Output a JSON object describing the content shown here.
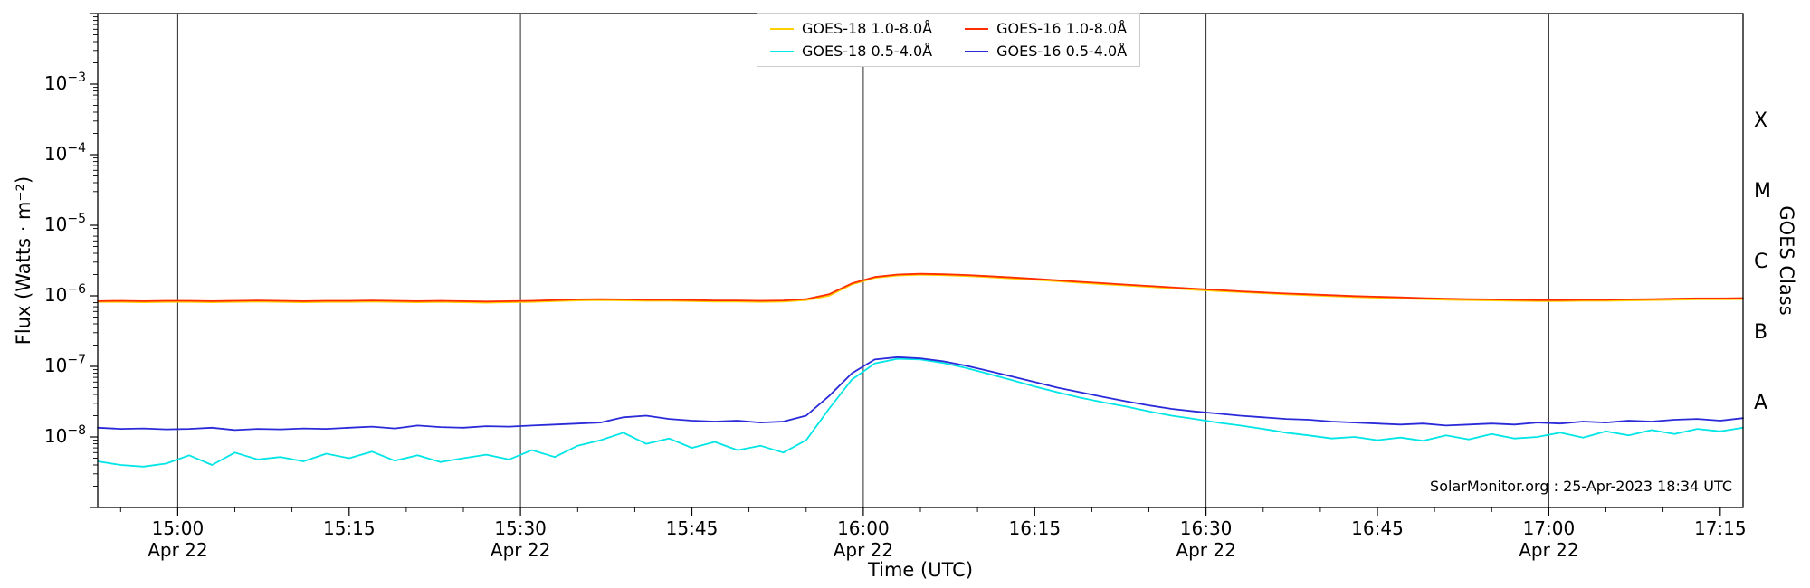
{
  "watermark": "SolarMonitor.org : 25-Apr-2023 18:34 UTC",
  "chart_data": {
    "type": "line",
    "title": "",
    "xlabel": "Time (UTC)",
    "ylabel": "Flux (Watts · m⁻²)",
    "ylabel_right": "GOES Class",
    "y_scale": "log",
    "y_range": [
      1e-09,
      0.01
    ],
    "y_tick_exponents": [
      -3,
      -4,
      -5,
      -6,
      -7,
      -8
    ],
    "x_unit": "minutes after 00:00 UTC",
    "x_range": [
      893,
      1037
    ],
    "x_minor_step_min": 5,
    "grid": "vertical lines at 30-min marks",
    "legend_position": "top-center",
    "x_ticks": [
      {
        "t": 900,
        "label": "15:00",
        "date": "Apr 22",
        "grid": true
      },
      {
        "t": 915,
        "label": "15:15",
        "grid": false
      },
      {
        "t": 930,
        "label": "15:30",
        "date": "Apr 22",
        "grid": true
      },
      {
        "t": 945,
        "label": "15:45",
        "grid": false
      },
      {
        "t": 960,
        "label": "16:00",
        "date": "Apr 22",
        "grid": true
      },
      {
        "t": 975,
        "label": "16:15",
        "grid": false
      },
      {
        "t": 990,
        "label": "16:30",
        "date": "Apr 22",
        "grid": true
      },
      {
        "t": 1005,
        "label": "16:45",
        "grid": false
      },
      {
        "t": 1020,
        "label": "17:00",
        "date": "Apr 22",
        "grid": true
      },
      {
        "t": 1035,
        "label": "17:15",
        "grid": false
      }
    ],
    "goes_classes": [
      {
        "label": "X",
        "mid_exp": -3.5
      },
      {
        "label": "M",
        "mid_exp": -4.5
      },
      {
        "label": "C",
        "mid_exp": -5.5
      },
      {
        "label": "B",
        "mid_exp": -6.5
      },
      {
        "label": "A",
        "mid_exp": -7.5
      }
    ],
    "x": [
      893,
      895,
      897,
      899,
      901,
      903,
      905,
      907,
      909,
      911,
      913,
      915,
      917,
      919,
      921,
      923,
      925,
      927,
      929,
      931,
      933,
      935,
      937,
      939,
      941,
      943,
      945,
      947,
      949,
      951,
      953,
      955,
      957,
      959,
      961,
      963,
      965,
      967,
      969,
      971,
      973,
      975,
      977,
      979,
      981,
      983,
      985,
      987,
      989,
      991,
      993,
      995,
      997,
      999,
      1001,
      1003,
      1005,
      1007,
      1009,
      1011,
      1013,
      1015,
      1017,
      1019,
      1021,
      1023,
      1025,
      1027,
      1029,
      1031,
      1033,
      1035,
      1037
    ],
    "series": [
      {
        "name": "GOES-18 1.0-8.0Å",
        "color": "#ffd000",
        "values": [
          8.2e-07,
          8.2e-07,
          8.1e-07,
          8.2e-07,
          8.2e-07,
          8.1e-07,
          8.2e-07,
          8.3e-07,
          8.2e-07,
          8.1e-07,
          8.2e-07,
          8.2e-07,
          8.3e-07,
          8.2e-07,
          8.1e-07,
          8.2e-07,
          8.1e-07,
          8e-07,
          8.1e-07,
          8.2e-07,
          8.4e-07,
          8.6e-07,
          8.7e-07,
          8.6e-07,
          8.5e-07,
          8.5e-07,
          8.4e-07,
          8.3e-07,
          8.3e-07,
          8.2e-07,
          8.3e-07,
          8.7e-07,
          1e-06,
          1.45e-06,
          1.8e-06,
          1.94e-06,
          1.99e-06,
          1.96e-06,
          1.91e-06,
          1.84e-06,
          1.76e-06,
          1.69e-06,
          1.61e-06,
          1.53e-06,
          1.46e-06,
          1.4e-06,
          1.34e-06,
          1.28e-06,
          1.22e-06,
          1.17e-06,
          1.13e-06,
          1.09e-06,
          1.05e-06,
          1.02e-06,
          9.9e-07,
          9.6e-07,
          9.4e-07,
          9.2e-07,
          9e-07,
          8.8e-07,
          8.7e-07,
          8.6e-07,
          8.5e-07,
          8.4e-07,
          8.4e-07,
          8.5e-07,
          8.5e-07,
          8.6e-07,
          8.7e-07,
          8.8e-07,
          8.9e-07,
          8.9e-07,
          9e-07
        ]
      },
      {
        "name": "GOES-18 0.5-4.0Å",
        "color": "#00e5e5",
        "values": [
          4.5e-09,
          4e-09,
          3.8e-09,
          4.2e-09,
          5.5e-09,
          4e-09,
          6e-09,
          4.8e-09,
          5.2e-09,
          4.5e-09,
          5.8e-09,
          5e-09,
          6.2e-09,
          4.6e-09,
          5.5e-09,
          4.4e-09,
          5e-09,
          5.6e-09,
          4.8e-09,
          6.5e-09,
          5.2e-09,
          7.5e-09,
          9e-09,
          1.15e-08,
          8e-09,
          9.5e-09,
          7e-09,
          8.5e-09,
          6.5e-09,
          7.5e-09,
          6e-09,
          9e-09,
          2.5e-08,
          6.5e-08,
          1.1e-07,
          1.28e-07,
          1.25e-07,
          1.12e-07,
          9.5e-08,
          7.8e-08,
          6.4e-08,
          5.2e-08,
          4.3e-08,
          3.6e-08,
          3.1e-08,
          2.7e-08,
          2.3e-08,
          2e-08,
          1.8e-08,
          1.6e-08,
          1.45e-08,
          1.3e-08,
          1.15e-08,
          1.05e-08,
          9.5e-09,
          1e-08,
          9e-09,
          9.8e-09,
          8.8e-09,
          1.05e-08,
          9.2e-09,
          1.1e-08,
          9.5e-09,
          1e-08,
          1.15e-08,
          9.8e-09,
          1.2e-08,
          1.05e-08,
          1.25e-08,
          1.1e-08,
          1.3e-08,
          1.2e-08,
          1.35e-08
        ]
      },
      {
        "name": "GOES-16 1.0-8.0Å",
        "color": "#ff2d00",
        "values": [
          8.4e-07,
          8.5e-07,
          8.4e-07,
          8.5e-07,
          8.5e-07,
          8.4e-07,
          8.5e-07,
          8.6e-07,
          8.5e-07,
          8.4e-07,
          8.5e-07,
          8.5e-07,
          8.6e-07,
          8.5e-07,
          8.4e-07,
          8.5e-07,
          8.4e-07,
          8.3e-07,
          8.4e-07,
          8.5e-07,
          8.7e-07,
          8.9e-07,
          9e-07,
          8.9e-07,
          8.8e-07,
          8.8e-07,
          8.7e-07,
          8.6e-07,
          8.6e-07,
          8.5e-07,
          8.6e-07,
          9e-07,
          1.05e-06,
          1.5e-06,
          1.85e-06,
          2e-06,
          2.05e-06,
          2.02e-06,
          1.97e-06,
          1.9e-06,
          1.82e-06,
          1.74e-06,
          1.66e-06,
          1.58e-06,
          1.51e-06,
          1.44e-06,
          1.38e-06,
          1.32e-06,
          1.26e-06,
          1.21e-06,
          1.16e-06,
          1.12e-06,
          1.08e-06,
          1.05e-06,
          1.02e-06,
          9.9e-07,
          9.7e-07,
          9.5e-07,
          9.3e-07,
          9.1e-07,
          9e-07,
          8.9e-07,
          8.8e-07,
          8.7e-07,
          8.7e-07,
          8.8e-07,
          8.8e-07,
          8.9e-07,
          9e-07,
          9.1e-07,
          9.2e-07,
          9.2e-07,
          9.3e-07
        ]
      },
      {
        "name": "GOES-16 0.5-4.0Å",
        "color": "#2a2ad9",
        "values": [
          1.35e-08,
          1.3e-08,
          1.32e-08,
          1.28e-08,
          1.3e-08,
          1.35e-08,
          1.25e-08,
          1.3e-08,
          1.28e-08,
          1.32e-08,
          1.3e-08,
          1.35e-08,
          1.4e-08,
          1.32e-08,
          1.45e-08,
          1.38e-08,
          1.35e-08,
          1.42e-08,
          1.4e-08,
          1.45e-08,
          1.5e-08,
          1.55e-08,
          1.6e-08,
          1.9e-08,
          2e-08,
          1.8e-08,
          1.7e-08,
          1.65e-08,
          1.7e-08,
          1.6e-08,
          1.65e-08,
          2e-08,
          3.8e-08,
          8e-08,
          1.25e-07,
          1.35e-07,
          1.3e-07,
          1.18e-07,
          1.02e-07,
          8.6e-08,
          7.2e-08,
          6e-08,
          5e-08,
          4.3e-08,
          3.7e-08,
          3.2e-08,
          2.8e-08,
          2.5e-08,
          2.3e-08,
          2.15e-08,
          2e-08,
          1.9e-08,
          1.8e-08,
          1.75e-08,
          1.65e-08,
          1.6e-08,
          1.55e-08,
          1.5e-08,
          1.55e-08,
          1.45e-08,
          1.5e-08,
          1.55e-08,
          1.5e-08,
          1.6e-08,
          1.55e-08,
          1.65e-08,
          1.6e-08,
          1.7e-08,
          1.65e-08,
          1.75e-08,
          1.8e-08,
          1.7e-08,
          1.85e-08
        ]
      }
    ]
  }
}
